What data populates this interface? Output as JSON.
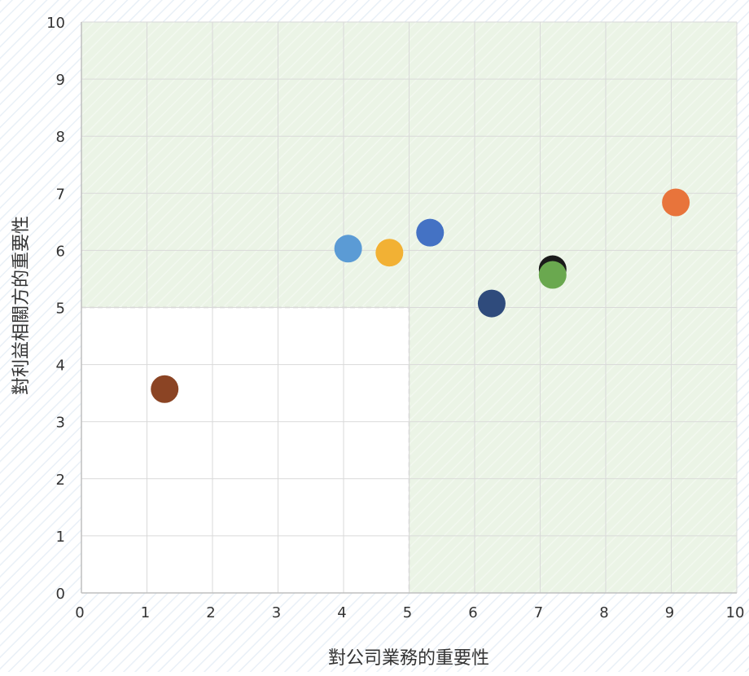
{
  "chart_data": {
    "type": "scatter",
    "xlabel": "對公司業務的重要性",
    "ylabel": "對利益相關方的重要性",
    "xlim": [
      0,
      10
    ],
    "ylim": [
      0,
      10
    ],
    "x_ticks": [
      "0",
      "1",
      "2",
      "3",
      "4",
      "5",
      "6",
      "7",
      "8",
      "9",
      "10"
    ],
    "y_ticks": [
      "0",
      "1",
      "2",
      "3",
      "4",
      "5",
      "6",
      "7",
      "8",
      "9",
      "10"
    ],
    "grid": true,
    "shaded_region": {
      "description_color": "#ebf4e6",
      "excluded_quadrant": {
        "x": [
          0,
          5
        ],
        "y": [
          0,
          5
        ]
      }
    },
    "points": [
      {
        "x": 1.27,
        "y": 3.57,
        "color": "#8b4424"
      },
      {
        "x": 4.07,
        "y": 6.03,
        "color": "#5b9bd5"
      },
      {
        "x": 4.7,
        "y": 5.96,
        "color": "#f2b134"
      },
      {
        "x": 5.32,
        "y": 6.31,
        "color": "#4472c4"
      },
      {
        "x": 6.26,
        "y": 5.07,
        "color": "#2f4b7c"
      },
      {
        "x": 7.19,
        "y": 5.67,
        "color": "#1a1a1a"
      },
      {
        "x": 7.19,
        "y": 5.57,
        "color": "#6aa84f"
      },
      {
        "x": 9.07,
        "y": 6.84,
        "color": "#e8743b"
      }
    ]
  }
}
